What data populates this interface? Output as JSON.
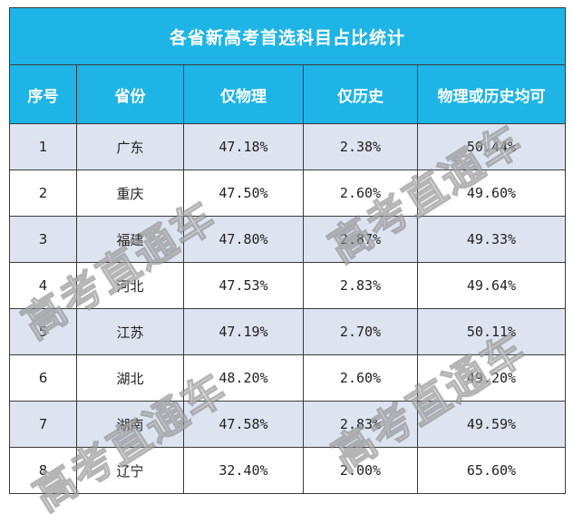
{
  "table": {
    "title": "各省新高考首选科目占比统计",
    "headers": [
      "序号",
      "省份",
      "仅物理",
      "仅历史",
      "物理或历史均可"
    ],
    "rows": [
      [
        "1",
        "广东",
        "47.18%",
        "2.38%",
        "50.44%"
      ],
      [
        "2",
        "重庆",
        "47.50%",
        "2.60%",
        "49.60%"
      ],
      [
        "3",
        "福建",
        "47.80%",
        "2.87%",
        "49.33%"
      ],
      [
        "4",
        "河北",
        "47.53%",
        "2.83%",
        "49.64%"
      ],
      [
        "5",
        "江苏",
        "47.19%",
        "2.70%",
        "50.11%"
      ],
      [
        "6",
        "湖北",
        "48.20%",
        "2.60%",
        "49.20%"
      ],
      [
        "7",
        "湖南",
        "47.58%",
        "2.83%",
        "49.59%"
      ],
      [
        "8",
        "辽宁",
        "32.40%",
        "2.00%",
        "65.60%"
      ]
    ]
  },
  "watermark": {
    "text": "高考直通车"
  },
  "colors": {
    "header_bg": "#1fb4e6",
    "header_text": "#ffffff",
    "row_odd_bg": "#dde3ef",
    "row_even_bg": "#ffffff"
  }
}
